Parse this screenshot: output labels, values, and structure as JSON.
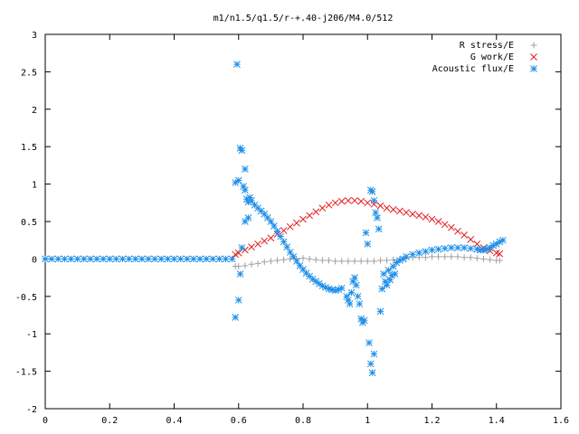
{
  "chart_data": {
    "type": "scatter",
    "title": "m1/n1.5/q1.5/r-+.40-j206/M4.0/512",
    "xlabel": "",
    "ylabel": "",
    "xlim": [
      0,
      1.6
    ],
    "ylim": [
      -2,
      3
    ],
    "x_ticks": [
      "0",
      "0.2",
      "0.4",
      "0.6",
      "0.8",
      "1",
      "1.2",
      "1.4",
      "1.6"
    ],
    "y_ticks": [
      "3",
      "2.5",
      "2",
      "1.5",
      "1",
      "0.5",
      "0",
      "-0.5",
      "-1",
      "-1.5",
      "-2"
    ],
    "grid": false,
    "legend_position": "top-right",
    "series": [
      {
        "name": "R stress/E",
        "marker": "plus",
        "color": "#a0a0a0",
        "points": [
          [
            0.59,
            -0.1
          ],
          [
            0.6,
            -0.1
          ],
          [
            0.62,
            -0.09
          ],
          [
            0.64,
            -0.07
          ],
          [
            0.66,
            -0.06
          ],
          [
            0.68,
            -0.04
          ],
          [
            0.7,
            -0.03
          ],
          [
            0.72,
            -0.02
          ],
          [
            0.74,
            -0.01
          ],
          [
            0.76,
            0.0
          ],
          [
            0.78,
            0.0
          ],
          [
            0.8,
            0.01
          ],
          [
            0.82,
            0.0
          ],
          [
            0.84,
            -0.01
          ],
          [
            0.86,
            -0.02
          ],
          [
            0.88,
            -0.02
          ],
          [
            0.9,
            -0.03
          ],
          [
            0.92,
            -0.03
          ],
          [
            0.94,
            -0.03
          ],
          [
            0.96,
            -0.03
          ],
          [
            0.98,
            -0.03
          ],
          [
            1.0,
            -0.03
          ],
          [
            1.02,
            -0.03
          ],
          [
            1.04,
            -0.02
          ],
          [
            1.06,
            -0.02
          ],
          [
            1.08,
            -0.01
          ],
          [
            1.1,
            0.0
          ],
          [
            1.12,
            0.01
          ],
          [
            1.14,
            0.02
          ],
          [
            1.16,
            0.02
          ],
          [
            1.18,
            0.02
          ],
          [
            1.2,
            0.03
          ],
          [
            1.22,
            0.03
          ],
          [
            1.24,
            0.03
          ],
          [
            1.26,
            0.03
          ],
          [
            1.28,
            0.03
          ],
          [
            1.3,
            0.02
          ],
          [
            1.32,
            0.02
          ],
          [
            1.34,
            0.01
          ],
          [
            1.36,
            0.0
          ],
          [
            1.38,
            -0.01
          ],
          [
            1.4,
            -0.02
          ],
          [
            1.41,
            -0.02
          ]
        ]
      },
      {
        "name": "G work/E",
        "marker": "cross",
        "color": "#e41a1c",
        "points": [
          [
            0.59,
            0.06
          ],
          [
            0.6,
            0.08
          ],
          [
            0.62,
            0.12
          ],
          [
            0.64,
            0.16
          ],
          [
            0.66,
            0.2
          ],
          [
            0.68,
            0.24
          ],
          [
            0.7,
            0.28
          ],
          [
            0.72,
            0.33
          ],
          [
            0.74,
            0.38
          ],
          [
            0.76,
            0.43
          ],
          [
            0.78,
            0.48
          ],
          [
            0.8,
            0.53
          ],
          [
            0.82,
            0.58
          ],
          [
            0.84,
            0.63
          ],
          [
            0.86,
            0.68
          ],
          [
            0.88,
            0.72
          ],
          [
            0.9,
            0.75
          ],
          [
            0.92,
            0.77
          ],
          [
            0.94,
            0.78
          ],
          [
            0.96,
            0.78
          ],
          [
            0.98,
            0.77
          ],
          [
            1.0,
            0.75
          ],
          [
            1.02,
            0.73
          ],
          [
            1.04,
            0.71
          ],
          [
            1.06,
            0.68
          ],
          [
            1.08,
            0.66
          ],
          [
            1.1,
            0.64
          ],
          [
            1.12,
            0.62
          ],
          [
            1.14,
            0.6
          ],
          [
            1.16,
            0.58
          ],
          [
            1.18,
            0.56
          ],
          [
            1.2,
            0.53
          ],
          [
            1.22,
            0.5
          ],
          [
            1.24,
            0.46
          ],
          [
            1.26,
            0.42
          ],
          [
            1.28,
            0.37
          ],
          [
            1.3,
            0.32
          ],
          [
            1.32,
            0.26
          ],
          [
            1.34,
            0.2
          ],
          [
            1.36,
            0.15
          ],
          [
            1.38,
            0.11
          ],
          [
            1.4,
            0.08
          ],
          [
            1.41,
            0.07
          ]
        ]
      },
      {
        "name": "Acoustic flux/E",
        "marker": "star",
        "color": "#1f8fe8",
        "points": [
          [
            0.0,
            0.0
          ],
          [
            0.02,
            0.0
          ],
          [
            0.04,
            0.0
          ],
          [
            0.06,
            0.0
          ],
          [
            0.08,
            0.0
          ],
          [
            0.1,
            0.0
          ],
          [
            0.12,
            0.0
          ],
          [
            0.14,
            0.0
          ],
          [
            0.16,
            0.0
          ],
          [
            0.18,
            0.0
          ],
          [
            0.2,
            0.0
          ],
          [
            0.22,
            0.0
          ],
          [
            0.24,
            0.0
          ],
          [
            0.26,
            0.0
          ],
          [
            0.28,
            0.0
          ],
          [
            0.3,
            0.0
          ],
          [
            0.32,
            0.0
          ],
          [
            0.34,
            0.0
          ],
          [
            0.36,
            0.0
          ],
          [
            0.38,
            0.0
          ],
          [
            0.4,
            0.0
          ],
          [
            0.42,
            0.0
          ],
          [
            0.44,
            0.0
          ],
          [
            0.46,
            0.0
          ],
          [
            0.48,
            0.0
          ],
          [
            0.5,
            0.0
          ],
          [
            0.52,
            0.0
          ],
          [
            0.54,
            0.0
          ],
          [
            0.56,
            0.0
          ],
          [
            0.58,
            0.0
          ],
          [
            0.595,
            2.6
          ],
          [
            0.605,
            1.48
          ],
          [
            0.61,
            1.45
          ],
          [
            0.62,
            1.2
          ],
          [
            0.59,
            1.02
          ],
          [
            0.6,
            1.05
          ],
          [
            0.615,
            0.97
          ],
          [
            0.62,
            0.92
          ],
          [
            0.625,
            0.8
          ],
          [
            0.63,
            0.76
          ],
          [
            0.635,
            0.82
          ],
          [
            0.64,
            0.78
          ],
          [
            0.65,
            0.72
          ],
          [
            0.66,
            0.68
          ],
          [
            0.67,
            0.64
          ],
          [
            0.68,
            0.6
          ],
          [
            0.69,
            0.55
          ],
          [
            0.7,
            0.5
          ],
          [
            0.71,
            0.44
          ],
          [
            0.72,
            0.37
          ],
          [
            0.73,
            0.3
          ],
          [
            0.74,
            0.23
          ],
          [
            0.75,
            0.16
          ],
          [
            0.76,
            0.09
          ],
          [
            0.77,
            0.03
          ],
          [
            0.78,
            -0.03
          ],
          [
            0.79,
            -0.09
          ],
          [
            0.8,
            -0.14
          ],
          [
            0.81,
            -0.19
          ],
          [
            0.82,
            -0.23
          ],
          [
            0.83,
            -0.27
          ],
          [
            0.84,
            -0.3
          ],
          [
            0.85,
            -0.33
          ],
          [
            0.86,
            -0.36
          ],
          [
            0.87,
            -0.38
          ],
          [
            0.88,
            -0.4
          ],
          [
            0.89,
            -0.41
          ],
          [
            0.9,
            -0.42
          ],
          [
            0.91,
            -0.41
          ],
          [
            0.92,
            -0.39
          ],
          [
            0.59,
            -0.78
          ],
          [
            0.6,
            -0.55
          ],
          [
            0.605,
            -0.2
          ],
          [
            0.61,
            0.15
          ],
          [
            0.62,
            0.5
          ],
          [
            0.63,
            0.55
          ],
          [
            0.935,
            -0.5
          ],
          [
            0.94,
            -0.55
          ],
          [
            0.945,
            -0.6
          ],
          [
            0.95,
            -0.45
          ],
          [
            0.955,
            -0.3
          ],
          [
            0.96,
            -0.25
          ],
          [
            0.965,
            -0.35
          ],
          [
            0.97,
            -0.5
          ],
          [
            0.975,
            -0.6
          ],
          [
            0.98,
            -0.8
          ],
          [
            0.985,
            -0.85
          ],
          [
            0.99,
            -0.82
          ],
          [
            0.995,
            0.35
          ],
          [
            1.0,
            0.2
          ],
          [
            1.005,
            -1.12
          ],
          [
            1.01,
            -1.4
          ],
          [
            1.015,
            -1.52
          ],
          [
            1.02,
            -1.27
          ],
          [
            1.01,
            0.92
          ],
          [
            1.015,
            0.9
          ],
          [
            1.02,
            0.78
          ],
          [
            1.025,
            0.62
          ],
          [
            1.03,
            0.55
          ],
          [
            1.035,
            0.4
          ],
          [
            1.04,
            -0.7
          ],
          [
            1.045,
            -0.4
          ],
          [
            1.05,
            -0.2
          ],
          [
            1.055,
            -0.3
          ],
          [
            1.06,
            -0.35
          ],
          [
            1.065,
            -0.15
          ],
          [
            1.07,
            -0.28
          ],
          [
            1.075,
            -0.22
          ],
          [
            1.08,
            -0.1
          ],
          [
            1.085,
            -0.2
          ],
          [
            1.09,
            -0.05
          ],
          [
            1.1,
            -0.02
          ],
          [
            1.11,
            0.0
          ],
          [
            1.12,
            0.03
          ],
          [
            1.14,
            0.06
          ],
          [
            1.16,
            0.08
          ],
          [
            1.18,
            0.1
          ],
          [
            1.2,
            0.12
          ],
          [
            1.22,
            0.13
          ],
          [
            1.24,
            0.14
          ],
          [
            1.26,
            0.15
          ],
          [
            1.28,
            0.15
          ],
          [
            1.3,
            0.15
          ],
          [
            1.32,
            0.14
          ],
          [
            1.34,
            0.13
          ],
          [
            1.35,
            0.12
          ],
          [
            1.36,
            0.12
          ],
          [
            1.37,
            0.13
          ],
          [
            1.38,
            0.15
          ],
          [
            1.39,
            0.18
          ],
          [
            1.4,
            0.2
          ],
          [
            1.41,
            0.23
          ],
          [
            1.42,
            0.25
          ]
        ]
      }
    ]
  }
}
